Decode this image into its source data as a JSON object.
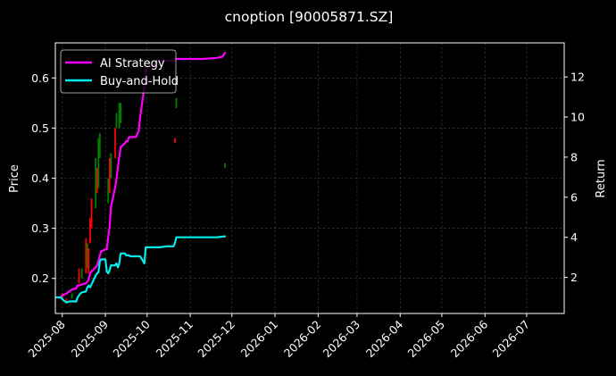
{
  "chart_data": {
    "type": "line",
    "title": "cnoption [90005871.SZ]",
    "ylabel": "Price",
    "y2label": "Return",
    "ylim": [
      0.13,
      0.67
    ],
    "y2lim": [
      0.2,
      13.7
    ],
    "xlim": [
      "2025-07-27",
      "2026-07-28"
    ],
    "y_ticks": [
      "0.2",
      "0.3",
      "0.4",
      "0.5",
      "0.6"
    ],
    "y2_ticks": [
      "2",
      "4",
      "6",
      "8",
      "10",
      "12"
    ],
    "x_ticks": [
      "2025-08",
      "2025-09",
      "2025-10",
      "2025-11",
      "2025-12",
      "2026-01",
      "2026-02",
      "2026-03",
      "2026-04",
      "2026-05",
      "2026-06",
      "2026-07"
    ],
    "grid": true,
    "legend_position": "top-left",
    "colors": {
      "background": "#000000",
      "up": "#008000",
      "down": "#ff0000",
      "ai": "#ff00ff",
      "bh": "#00eeee"
    },
    "series": [
      {
        "name": "AI Strategy",
        "axis": "return",
        "points": [
          [
            "2025-07-28",
            1.0
          ],
          [
            "2025-07-31",
            1.0
          ],
          [
            "2025-08-01",
            1.1
          ],
          [
            "2025-08-04",
            1.2
          ],
          [
            "2025-08-06",
            1.3
          ],
          [
            "2025-08-08",
            1.4
          ],
          [
            "2025-08-11",
            1.45
          ],
          [
            "2025-08-12",
            1.6
          ],
          [
            "2025-08-13",
            1.6
          ],
          [
            "2025-08-15",
            1.65
          ],
          [
            "2025-08-18",
            1.7
          ],
          [
            "2025-08-19",
            1.8
          ],
          [
            "2025-08-20",
            1.9
          ],
          [
            "2025-08-21",
            2.2
          ],
          [
            "2025-08-22",
            2.3
          ],
          [
            "2025-08-25",
            2.5
          ],
          [
            "2025-08-26",
            2.6
          ],
          [
            "2025-08-27",
            2.8
          ],
          [
            "2025-08-28",
            3.1
          ],
          [
            "2025-08-29",
            3.3
          ],
          [
            "2025-09-01",
            3.4
          ],
          [
            "2025-09-02",
            3.4
          ],
          [
            "2025-09-03",
            4.0
          ],
          [
            "2025-09-04",
            4.5
          ],
          [
            "2025-09-05",
            5.5
          ],
          [
            "2025-09-08",
            6.5
          ],
          [
            "2025-09-09",
            6.9
          ],
          [
            "2025-09-10",
            7.5
          ],
          [
            "2025-09-11",
            8.0
          ],
          [
            "2025-09-12",
            8.5
          ],
          [
            "2025-09-15",
            8.7
          ],
          [
            "2025-09-16",
            8.8
          ],
          [
            "2025-09-17",
            8.8
          ],
          [
            "2025-09-18",
            9.0
          ],
          [
            "2025-09-19",
            9.0
          ],
          [
            "2025-09-22",
            9.0
          ],
          [
            "2025-09-23",
            9.0
          ],
          [
            "2025-09-25",
            9.3
          ],
          [
            "2025-09-26",
            10.0
          ],
          [
            "2025-09-29",
            11.5
          ],
          [
            "2025-09-30",
            12.2
          ],
          [
            "2025-10-01",
            12.5
          ],
          [
            "2025-10-06",
            12.6
          ],
          [
            "2025-10-08",
            12.7
          ],
          [
            "2025-10-10",
            12.8
          ],
          [
            "2025-10-15",
            12.8
          ],
          [
            "2025-10-20",
            12.8
          ],
          [
            "2025-10-21",
            12.9
          ],
          [
            "2025-10-25",
            12.9
          ],
          [
            "2025-11-01",
            12.9
          ],
          [
            "2025-11-10",
            12.9
          ],
          [
            "2025-11-20",
            12.95
          ],
          [
            "2025-11-24",
            13.0
          ],
          [
            "2025-11-26",
            13.2
          ]
        ]
      },
      {
        "name": "Buy-and-Hold",
        "axis": "return",
        "points": [
          [
            "2025-07-28",
            1.0
          ],
          [
            "2025-07-31",
            1.0
          ],
          [
            "2025-08-02",
            0.85
          ],
          [
            "2025-08-04",
            0.75
          ],
          [
            "2025-08-06",
            0.8
          ],
          [
            "2025-08-08",
            0.8
          ],
          [
            "2025-08-11",
            0.8
          ],
          [
            "2025-08-12",
            1.0
          ],
          [
            "2025-08-14",
            1.2
          ],
          [
            "2025-08-15",
            1.25
          ],
          [
            "2025-08-18",
            1.3
          ],
          [
            "2025-08-19",
            1.5
          ],
          [
            "2025-08-20",
            1.6
          ],
          [
            "2025-08-21",
            1.5
          ],
          [
            "2025-08-22",
            1.65
          ],
          [
            "2025-08-25",
            2.1
          ],
          [
            "2025-08-26",
            2.2
          ],
          [
            "2025-08-27",
            2.25
          ],
          [
            "2025-08-28",
            2.8
          ],
          [
            "2025-08-29",
            2.9
          ],
          [
            "2025-09-01",
            2.9
          ],
          [
            "2025-09-02",
            2.3
          ],
          [
            "2025-09-03",
            2.2
          ],
          [
            "2025-09-04",
            2.35
          ],
          [
            "2025-09-05",
            2.6
          ],
          [
            "2025-09-08",
            2.6
          ],
          [
            "2025-09-09",
            2.7
          ],
          [
            "2025-09-10",
            2.5
          ],
          [
            "2025-09-11",
            2.7
          ],
          [
            "2025-09-12",
            3.2
          ],
          [
            "2025-09-15",
            3.2
          ],
          [
            "2025-09-16",
            3.1
          ],
          [
            "2025-09-18",
            3.1
          ],
          [
            "2025-09-19",
            3.05
          ],
          [
            "2025-09-22",
            3.05
          ],
          [
            "2025-09-25",
            3.05
          ],
          [
            "2025-09-26",
            3.05
          ],
          [
            "2025-09-29",
            2.7
          ],
          [
            "2025-09-30",
            3.5
          ],
          [
            "2025-10-01",
            3.5
          ],
          [
            "2025-10-10",
            3.5
          ],
          [
            "2025-10-15",
            3.55
          ],
          [
            "2025-10-20",
            3.55
          ],
          [
            "2025-10-21",
            3.7
          ],
          [
            "2025-10-22",
            4.0
          ],
          [
            "2025-10-25",
            4.0
          ],
          [
            "2025-11-01",
            4.0
          ],
          [
            "2025-11-10",
            4.0
          ],
          [
            "2025-11-20",
            4.0
          ],
          [
            "2025-11-26",
            4.05
          ]
        ]
      }
    ],
    "candles": [
      {
        "date": "2025-08-01",
        "low": 0.16,
        "high": 0.17,
        "dir": "down"
      },
      {
        "date": "2025-08-04",
        "low": 0.15,
        "high": 0.16,
        "dir": "down"
      },
      {
        "date": "2025-08-08",
        "low": 0.16,
        "high": 0.17,
        "dir": "up"
      },
      {
        "date": "2025-08-13",
        "low": 0.19,
        "high": 0.22,
        "dir": "down"
      },
      {
        "date": "2025-08-15",
        "low": 0.2,
        "high": 0.22,
        "dir": "up"
      },
      {
        "date": "2025-08-18",
        "low": 0.21,
        "high": 0.28,
        "dir": "down"
      },
      {
        "date": "2025-08-19",
        "low": 0.22,
        "high": 0.27,
        "dir": "up"
      },
      {
        "date": "2025-08-20",
        "low": 0.21,
        "high": 0.26,
        "dir": "down"
      },
      {
        "date": "2025-08-21",
        "low": 0.27,
        "high": 0.32,
        "dir": "down"
      },
      {
        "date": "2025-08-22",
        "low": 0.3,
        "high": 0.36,
        "dir": "down"
      },
      {
        "date": "2025-08-25",
        "low": 0.34,
        "high": 0.44,
        "dir": "up"
      },
      {
        "date": "2025-08-26",
        "low": 0.37,
        "high": 0.42,
        "dir": "down"
      },
      {
        "date": "2025-08-27",
        "low": 0.38,
        "high": 0.48,
        "dir": "up"
      },
      {
        "date": "2025-08-28",
        "low": 0.44,
        "high": 0.49,
        "dir": "up"
      },
      {
        "date": "2025-09-03",
        "low": 0.35,
        "high": 0.4,
        "dir": "up"
      },
      {
        "date": "2025-09-04",
        "low": 0.37,
        "high": 0.44,
        "dir": "down"
      },
      {
        "date": "2025-09-05",
        "low": 0.4,
        "high": 0.45,
        "dir": "up"
      },
      {
        "date": "2025-09-08",
        "low": 0.44,
        "high": 0.5,
        "dir": "down"
      },
      {
        "date": "2025-09-09",
        "low": 0.5,
        "high": 0.53,
        "dir": "up"
      },
      {
        "date": "2025-09-11",
        "low": 0.5,
        "high": 0.55,
        "dir": "up"
      },
      {
        "date": "2025-09-12",
        "low": 0.51,
        "high": 0.55,
        "dir": "up"
      },
      {
        "date": "2025-10-21",
        "low": 0.47,
        "high": 0.48,
        "dir": "down"
      },
      {
        "date": "2025-10-22",
        "low": 0.54,
        "high": 0.56,
        "dir": "up"
      },
      {
        "date": "2025-11-26",
        "low": 0.42,
        "high": 0.43,
        "dir": "up"
      }
    ]
  }
}
